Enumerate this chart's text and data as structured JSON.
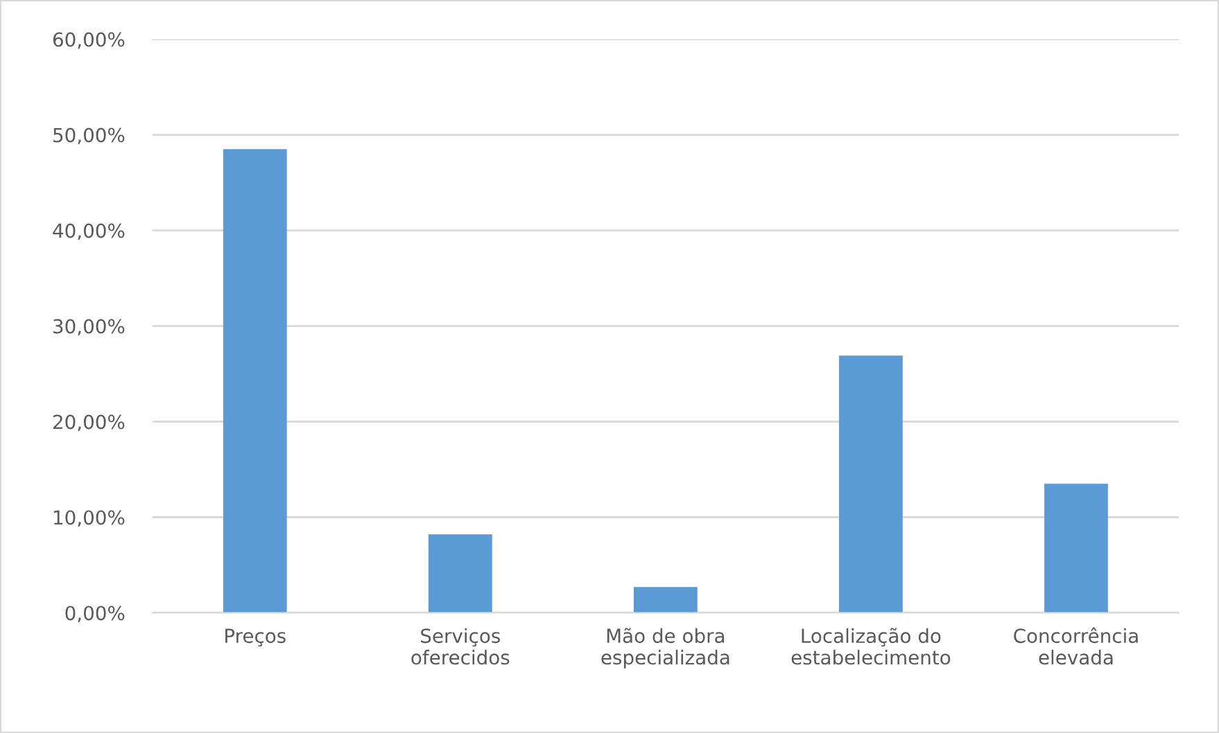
{
  "chart_data": {
    "type": "bar",
    "categories": [
      "Preços",
      "Serviços\noferecidos",
      "Mão de obra\nespecializada",
      "Localização do\nestabelecimento",
      "Concorrência\nelevada"
    ],
    "values": [
      48.5,
      8.2,
      2.7,
      26.9,
      13.5
    ],
    "color": "#5b9bd5",
    "ylim": [
      0,
      60
    ],
    "yticks": [
      {
        "value": 0,
        "label": "0,00%"
      },
      {
        "value": 10,
        "label": "10,00%"
      },
      {
        "value": 20,
        "label": "20,00%"
      },
      {
        "value": 30,
        "label": "30,00%"
      },
      {
        "value": 40,
        "label": "40,00%"
      },
      {
        "value": 50,
        "label": "50,00%"
      },
      {
        "value": 60,
        "label": "60,00%"
      }
    ],
    "grid": "y"
  }
}
